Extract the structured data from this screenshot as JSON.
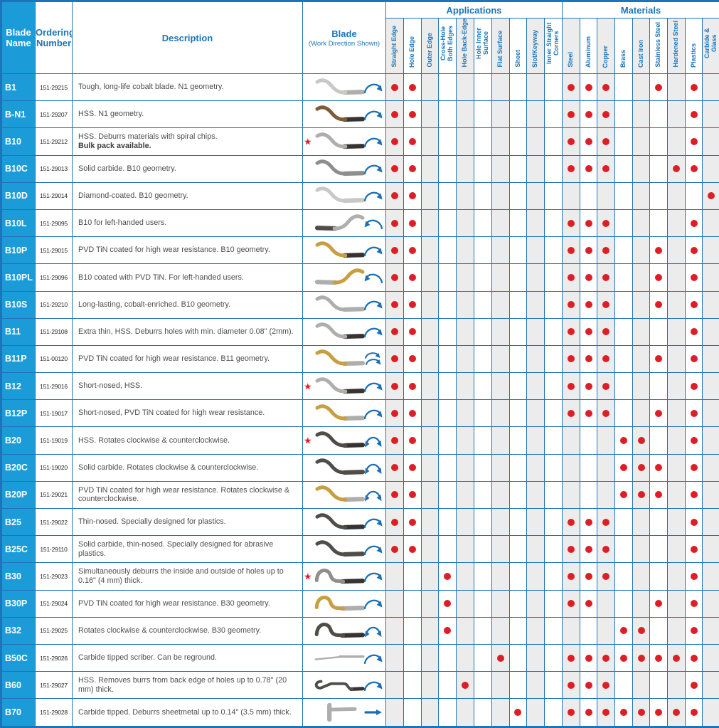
{
  "header": {
    "blade_name": "Blade Name",
    "ordering_number": "Ordering Number",
    "description": "Description",
    "blade": "Blade",
    "blade_subtitle": "(Work Direction Shown)",
    "applications_group": "Applications",
    "materials_group": "Materials"
  },
  "application_columns": [
    "Straight Edge",
    "Hole Edge",
    "Outer Edge",
    "Cross-Hole Both Edges",
    "Hole Back-Edge",
    "Hole Inner Surface",
    "Flat Surface",
    "Sheet",
    "Slot/Keyway",
    "Inner Straight Corners"
  ],
  "material_columns": [
    "Steel",
    "Aluminum",
    "Copper",
    "Brass",
    "Cast Iron",
    "Stainless Steel",
    "Hardened Steel",
    "Plastics",
    "Carbide & Glass"
  ],
  "colors": {
    "header_blue": "#1b75bb",
    "name_cell_blue": "#1b9cd8",
    "grid_blue": "#2273b9",
    "dot_red": "#dc1f26",
    "star_red": "#e11e26",
    "shade_gray": "#ececec",
    "arrow_blue": "#1b6fb5",
    "blades": {
      "lightsilver": "#c8c8c6",
      "silver": "#aeaeac",
      "gray": "#8e8e8c",
      "dark": "#504d49",
      "black": "#363330",
      "bronze": "#7d5c38",
      "gold": "#c79f42"
    }
  },
  "rows": [
    {
      "name": "B1",
      "order": "151-29215",
      "desc": "Tough, long-life cobalt blade. N1 geometry.",
      "desc_bold": "",
      "star": false,
      "blade": {
        "shape": "s",
        "body": "lightsilver",
        "tip": "silver",
        "arrow": "clockwise",
        "mirror": false
      },
      "apps": [
        1,
        1,
        0,
        0,
        0,
        0,
        0,
        0,
        0,
        0
      ],
      "mats": [
        1,
        1,
        1,
        0,
        0,
        1,
        0,
        1,
        0
      ]
    },
    {
      "name": "B-N1",
      "order": "151-29207",
      "desc": "HSS. N1 geometry.",
      "desc_bold": "",
      "star": false,
      "blade": {
        "shape": "s",
        "body": "bronze",
        "tip": "black",
        "arrow": "clockwise",
        "mirror": false
      },
      "apps": [
        1,
        1,
        0,
        0,
        0,
        0,
        0,
        0,
        0,
        0
      ],
      "mats": [
        1,
        1,
        1,
        0,
        0,
        0,
        0,
        1,
        0
      ]
    },
    {
      "name": "B10",
      "order": "151-29212",
      "desc": "HSS. Deburrs materials with spiral chips.",
      "desc_bold": "Bulk pack available.",
      "star": true,
      "blade": {
        "shape": "s",
        "body": "silver",
        "tip": "black",
        "arrow": "clockwise",
        "mirror": false
      },
      "apps": [
        1,
        1,
        0,
        0,
        0,
        0,
        0,
        0,
        0,
        0
      ],
      "mats": [
        1,
        1,
        1,
        0,
        0,
        0,
        0,
        1,
        0
      ]
    },
    {
      "name": "B10C",
      "order": "151-29013",
      "desc": "Solid carbide. B10 geometry.",
      "desc_bold": "",
      "star": false,
      "blade": {
        "shape": "s",
        "body": "gray",
        "tip": "gray",
        "arrow": "clockwise",
        "mirror": false
      },
      "apps": [
        1,
        1,
        0,
        0,
        0,
        0,
        0,
        0,
        0,
        0
      ],
      "mats": [
        1,
        1,
        1,
        0,
        0,
        0,
        1,
        1,
        0
      ]
    },
    {
      "name": "B10D",
      "order": "151-29014",
      "desc": "Diamond-coated. B10 geometry.",
      "desc_bold": "",
      "star": false,
      "blade": {
        "shape": "s",
        "body": "lightsilver",
        "tip": "lightsilver",
        "arrow": "clockwise",
        "mirror": false
      },
      "apps": [
        1,
        1,
        0,
        0,
        0,
        0,
        0,
        0,
        0,
        0
      ],
      "mats": [
        0,
        0,
        0,
        0,
        0,
        0,
        0,
        0,
        1
      ]
    },
    {
      "name": "B10L",
      "order": "151-29095",
      "desc": "B10 for left-handed users.",
      "desc_bold": "",
      "star": false,
      "blade": {
        "shape": "s",
        "body": "silver",
        "tip": "dark",
        "arrow": "counterclockwise",
        "mirror": true
      },
      "apps": [
        1,
        1,
        0,
        0,
        0,
        0,
        0,
        0,
        0,
        0
      ],
      "mats": [
        1,
        1,
        1,
        0,
        0,
        0,
        0,
        1,
        0
      ]
    },
    {
      "name": "B10P",
      "order": "151-29015",
      "desc": "PVD TiN coated for high wear resistance. B10 geometry.",
      "desc_bold": "",
      "star": false,
      "blade": {
        "shape": "s",
        "body": "gold",
        "tip": "black",
        "arrow": "clockwise",
        "mirror": false
      },
      "apps": [
        1,
        1,
        0,
        0,
        0,
        0,
        0,
        0,
        0,
        0
      ],
      "mats": [
        1,
        1,
        1,
        0,
        0,
        1,
        0,
        1,
        0
      ]
    },
    {
      "name": "B10PL",
      "order": "151-29096",
      "desc": "B10 coated with PVD TiN. For left-handed users.",
      "desc_bold": "",
      "star": false,
      "blade": {
        "shape": "s",
        "body": "gold",
        "tip": "silver",
        "arrow": "counterclockwise",
        "mirror": true
      },
      "apps": [
        1,
        1,
        0,
        0,
        0,
        0,
        0,
        0,
        0,
        0
      ],
      "mats": [
        1,
        1,
        1,
        0,
        0,
        1,
        0,
        1,
        0
      ]
    },
    {
      "name": "B10S",
      "order": "151-29210",
      "desc": "Long-lasting, cobalt-enriched. B10 geometry.",
      "desc_bold": "",
      "star": false,
      "blade": {
        "shape": "s",
        "body": "silver",
        "tip": "silver",
        "arrow": "clockwise",
        "mirror": false
      },
      "apps": [
        1,
        1,
        0,
        0,
        0,
        0,
        0,
        0,
        0,
        0
      ],
      "mats": [
        1,
        1,
        1,
        0,
        0,
        1,
        0,
        1,
        0
      ]
    },
    {
      "name": "B11",
      "order": "151-29108",
      "desc": "Extra thin, HSS. Deburrs holes with min. diameter 0.08\" (2mm).",
      "desc_bold": "",
      "star": false,
      "blade": {
        "shape": "s",
        "body": "silver",
        "tip": "black",
        "arrow": "clockwise",
        "mirror": false
      },
      "apps": [
        1,
        1,
        0,
        0,
        0,
        0,
        0,
        0,
        0,
        0
      ],
      "mats": [
        1,
        1,
        1,
        0,
        0,
        0,
        0,
        1,
        0
      ]
    },
    {
      "name": "B11P",
      "order": "151-00120",
      "desc": "PVD TiN coated for high wear resistance. B11 geometry.",
      "desc_bold": "",
      "star": false,
      "blade": {
        "shape": "s",
        "body": "gold",
        "tip": "silver",
        "arrow": "double-clockwise",
        "mirror": false
      },
      "apps": [
        1,
        1,
        0,
        0,
        0,
        0,
        0,
        0,
        0,
        0
      ],
      "mats": [
        1,
        1,
        1,
        0,
        0,
        1,
        0,
        1,
        0
      ]
    },
    {
      "name": "B12",
      "order": "151-29016",
      "desc": "Short-nosed, HSS.",
      "desc_bold": "",
      "star": true,
      "blade": {
        "shape": "s",
        "body": "silver",
        "tip": "black",
        "arrow": "clockwise",
        "mirror": false
      },
      "apps": [
        1,
        1,
        0,
        0,
        0,
        0,
        0,
        0,
        0,
        0
      ],
      "mats": [
        1,
        1,
        1,
        0,
        0,
        0,
        0,
        1,
        0
      ]
    },
    {
      "name": "B12P",
      "order": "151-19017",
      "desc": "Short-nosed, PVD TiN coated for high wear resistance.",
      "desc_bold": "",
      "star": false,
      "blade": {
        "shape": "s",
        "body": "gold",
        "tip": "silver",
        "arrow": "clockwise",
        "mirror": false
      },
      "apps": [
        1,
        1,
        0,
        0,
        0,
        0,
        0,
        0,
        0,
        0
      ],
      "mats": [
        1,
        1,
        1,
        0,
        0,
        1,
        0,
        1,
        0
      ]
    },
    {
      "name": "B20",
      "order": "151-19019",
      "desc": "HSS. Rotates clockwise & counterclockwise.",
      "desc_bold": "",
      "star": true,
      "blade": {
        "shape": "s",
        "body": "dark",
        "tip": "black",
        "arrow": "both",
        "mirror": false
      },
      "apps": [
        1,
        1,
        0,
        0,
        0,
        0,
        0,
        0,
        0,
        0
      ],
      "mats": [
        0,
        0,
        0,
        1,
        1,
        0,
        0,
        1,
        0
      ]
    },
    {
      "name": "B20C",
      "order": "151-19020",
      "desc": "Solid carbide. Rotates clockwise & counterclockwise.",
      "desc_bold": "",
      "star": false,
      "blade": {
        "shape": "s",
        "body": "dark",
        "tip": "dark",
        "arrow": "both",
        "mirror": false
      },
      "apps": [
        1,
        1,
        0,
        0,
        0,
        0,
        0,
        0,
        0,
        0
      ],
      "mats": [
        0,
        0,
        0,
        1,
        1,
        1,
        0,
        1,
        0
      ]
    },
    {
      "name": "B20P",
      "order": "151-29021",
      "desc": "PVD TiN coated for high wear resistance. Rotates clockwise & counterclockwise.",
      "desc_bold": "",
      "star": false,
      "blade": {
        "shape": "s",
        "body": "gold",
        "tip": "silver",
        "arrow": "both",
        "mirror": false
      },
      "apps": [
        1,
        1,
        0,
        0,
        0,
        0,
        0,
        0,
        0,
        0
      ],
      "mats": [
        0,
        0,
        0,
        1,
        1,
        1,
        0,
        1,
        0
      ]
    },
    {
      "name": "B25",
      "order": "151-29022",
      "desc": "Thin-nosed. Specially designed for plastics.",
      "desc_bold": "",
      "star": false,
      "blade": {
        "shape": "s",
        "body": "dark",
        "tip": "black",
        "arrow": "clockwise",
        "mirror": false
      },
      "apps": [
        1,
        1,
        0,
        0,
        0,
        0,
        0,
        0,
        0,
        0
      ],
      "mats": [
        1,
        1,
        1,
        0,
        0,
        0,
        0,
        1,
        0
      ]
    },
    {
      "name": "B25C",
      "order": "151-29110",
      "desc": "Solid carbide, thin-nosed. Specially designed for abrasive plastics.",
      "desc_bold": "",
      "star": false,
      "blade": {
        "shape": "s",
        "body": "dark",
        "tip": "dark",
        "arrow": "clockwise",
        "mirror": false
      },
      "apps": [
        1,
        1,
        0,
        0,
        0,
        0,
        0,
        0,
        0,
        0
      ],
      "mats": [
        1,
        1,
        1,
        0,
        0,
        0,
        0,
        1,
        0
      ]
    },
    {
      "name": "B30",
      "order": "151-29023",
      "desc": "Simultaneously deburrs the inside and outside of holes up to 0.16\" (4 mm) thick.",
      "desc_bold": "",
      "star": true,
      "blade": {
        "shape": "hump",
        "body": "gray",
        "tip": "black",
        "arrow": "clockwise",
        "mirror": false
      },
      "apps": [
        0,
        0,
        0,
        1,
        0,
        0,
        0,
        0,
        0,
        0
      ],
      "mats": [
        1,
        1,
        1,
        0,
        0,
        0,
        0,
        1,
        0
      ]
    },
    {
      "name": "B30P",
      "order": "151-29024",
      "desc": "PVD TiN coated for high wear resistance. B30 geometry.",
      "desc_bold": "",
      "star": false,
      "blade": {
        "shape": "hump",
        "body": "gold",
        "tip": "silver",
        "arrow": "clockwise",
        "mirror": false
      },
      "apps": [
        0,
        0,
        0,
        1,
        0,
        0,
        0,
        0,
        0,
        0
      ],
      "mats": [
        1,
        1,
        0,
        0,
        0,
        1,
        0,
        1,
        0
      ]
    },
    {
      "name": "B32",
      "order": "151-29025",
      "desc": "Rotates clockwise & counterclockwise. B30 geometry.",
      "desc_bold": "",
      "star": false,
      "blade": {
        "shape": "hump",
        "body": "dark",
        "tip": "black",
        "arrow": "both",
        "mirror": false
      },
      "apps": [
        0,
        0,
        0,
        1,
        0,
        0,
        0,
        0,
        0,
        0
      ],
      "mats": [
        0,
        0,
        0,
        1,
        1,
        0,
        0,
        1,
        0
      ]
    },
    {
      "name": "B50C",
      "order": "151-29026",
      "desc": "Carbide tipped scriber. Can be reground.",
      "desc_bold": "",
      "star": false,
      "blade": {
        "shape": "straight",
        "body": "silver",
        "tip": "silver",
        "arrow": "clockwise",
        "mirror": false
      },
      "apps": [
        0,
        0,
        0,
        0,
        0,
        0,
        1,
        0,
        0,
        0
      ],
      "mats": [
        1,
        1,
        1,
        1,
        1,
        1,
        1,
        1,
        0
      ]
    },
    {
      "name": "B60",
      "order": "151-29027",
      "desc": "HSS. Removes burrs from back edge of holes up to 0.78\" (20 mm) thick.",
      "desc_bold": "",
      "star": false,
      "blade": {
        "shape": "hook",
        "body": "dark",
        "tip": "black",
        "arrow": "clockwise",
        "mirror": false
      },
      "apps": [
        0,
        0,
        0,
        0,
        1,
        0,
        0,
        0,
        0,
        0
      ],
      "mats": [
        1,
        1,
        1,
        0,
        0,
        0,
        0,
        1,
        0
      ]
    },
    {
      "name": "B70",
      "order": "151-29028",
      "desc": "Carbide tipped. Deburrs sheetmetal up to 0.14\" (3.5 mm) thick.",
      "desc_bold": "",
      "star": false,
      "blade": {
        "shape": "t",
        "body": "silver",
        "tip": "silver",
        "arrow": "straight",
        "mirror": false
      },
      "apps": [
        0,
        0,
        0,
        0,
        0,
        0,
        0,
        1,
        0,
        0
      ],
      "mats": [
        1,
        1,
        1,
        1,
        1,
        1,
        1,
        1,
        0
      ]
    }
  ]
}
